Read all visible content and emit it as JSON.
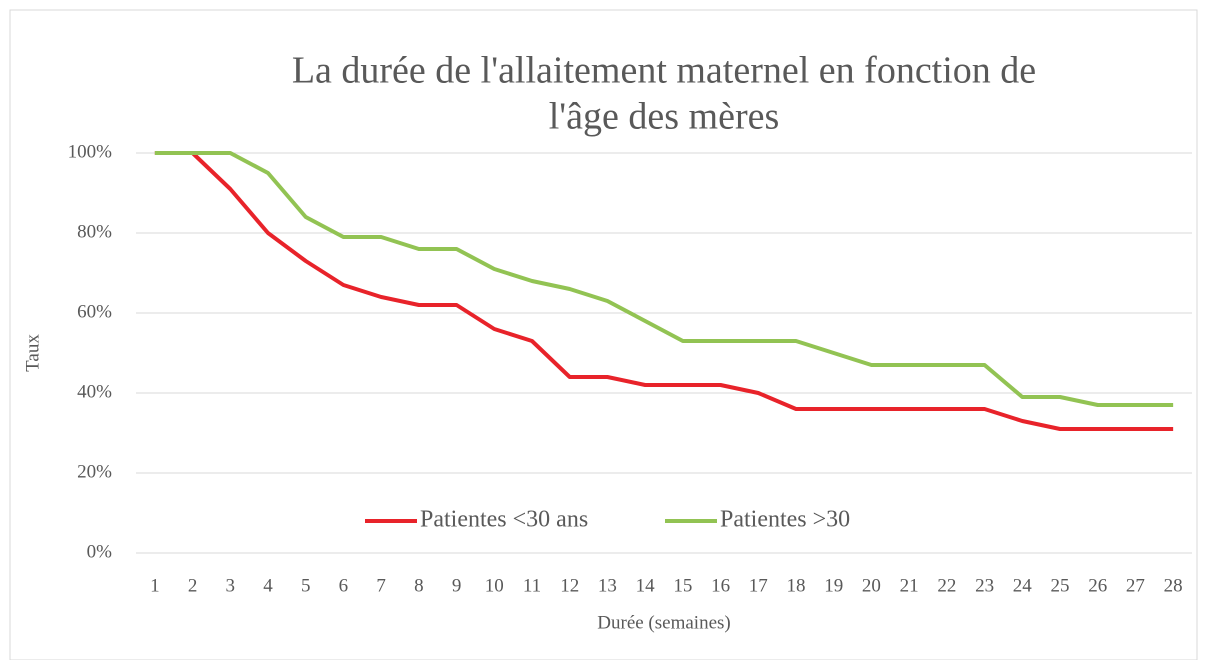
{
  "chart_data": {
    "type": "line",
    "title": [
      "La durée de l'allaitement maternel en fonction de",
      "l'âge des mères"
    ],
    "x_label": "Durée (semaines)",
    "y_label": "Taux",
    "categories": [
      "1",
      "2",
      "3",
      "4",
      "5",
      "6",
      "7",
      "8",
      "9",
      "10",
      "11",
      "12",
      "13",
      "14",
      "15",
      "16",
      "17",
      "18",
      "19",
      "20",
      "21",
      "22",
      "23",
      "24",
      "25",
      "26",
      "27",
      "28"
    ],
    "series": [
      {
        "name": "Patientes <30 ans",
        "color": "#e8232a",
        "values": [
          100,
          100,
          91,
          80,
          73,
          67,
          64,
          62,
          62,
          56,
          53,
          44,
          44,
          42,
          42,
          42,
          40,
          36,
          36,
          36,
          36,
          36,
          36,
          33,
          31,
          31,
          31,
          31
        ]
      },
      {
        "name": "Patientes >30",
        "color": "#92c353",
        "values": [
          100,
          100,
          100,
          95,
          84,
          79,
          79,
          76,
          76,
          71,
          68,
          66,
          63,
          58,
          53,
          53,
          53,
          53,
          50,
          47,
          47,
          47,
          47,
          39,
          39,
          37,
          37,
          37
        ]
      }
    ],
    "ylim": [
      0,
      100
    ],
    "yticks": [
      {
        "value": 0,
        "label": "0%"
      },
      {
        "value": 20,
        "label": "20%"
      },
      {
        "value": 40,
        "label": "40%"
      },
      {
        "value": 60,
        "label": "60%"
      },
      {
        "value": 80,
        "label": "80%"
      },
      {
        "value": 100,
        "label": "100%"
      }
    ],
    "grid": true,
    "legend": "bottom"
  }
}
